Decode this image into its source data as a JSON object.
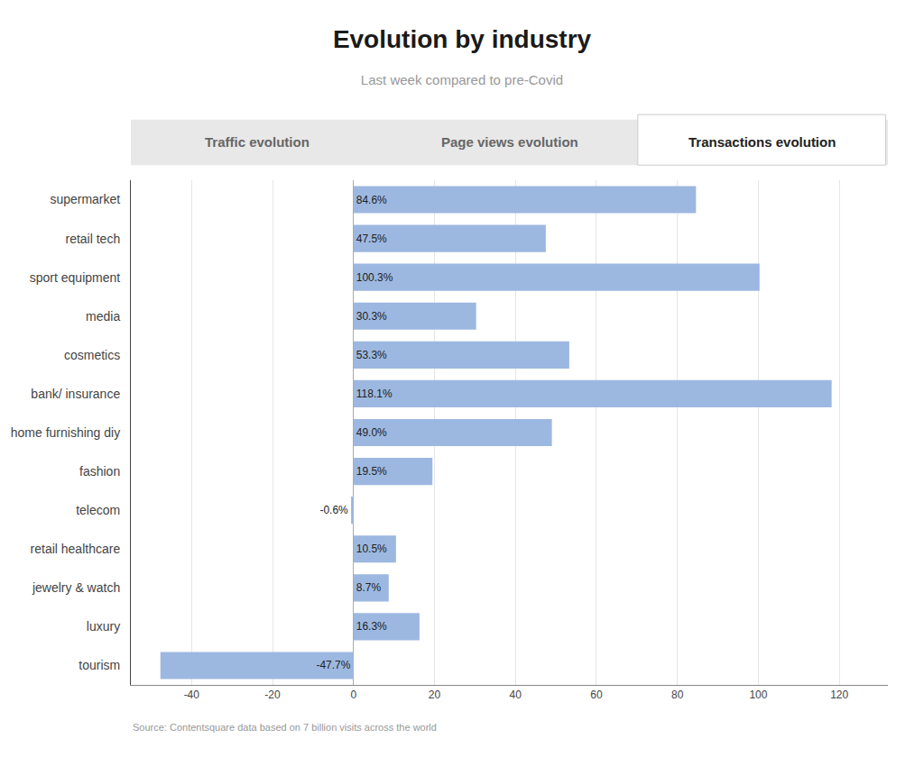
{
  "chart_data": {
    "type": "bar",
    "orientation": "horizontal",
    "title": "Evolution by industry",
    "subtitle": "Last week compared to pre-Covid",
    "annotations": [
      "Traffic evolution",
      "Page views evolution",
      "Transactions evolution",
      "Source: Contentsquare data based on 7 billion visits across the world"
    ],
    "categories": [
      "supermarket",
      "retail tech",
      "sport equipment",
      "media",
      "cosmetics",
      "bank/ insurance",
      "home furnishing diy",
      "fashion",
      "telecom",
      "retail healthcare",
      "jewelry & watch",
      "luxury",
      "tourism"
    ],
    "values": [
      84.6,
      47.5,
      100.3,
      30.3,
      53.3,
      118.1,
      49.0,
      19.5,
      -0.6,
      10.5,
      8.7,
      16.3,
      -47.7
    ],
    "value_labels": [
      "84.6%",
      "47.5%",
      "100.3%",
      "30.3%",
      "53.3%",
      "118.1%",
      "49.0%",
      "19.5%",
      "-0.6%",
      "10.5%",
      "8.7%",
      "16.3%",
      "-47.7%"
    ],
    "data_labels": true,
    "color": "#9db8e0",
    "xlim": [
      -55,
      132
    ],
    "xticks": [
      -40,
      -20,
      0,
      20,
      40,
      60,
      80,
      100,
      120
    ],
    "grid": true
  }
}
